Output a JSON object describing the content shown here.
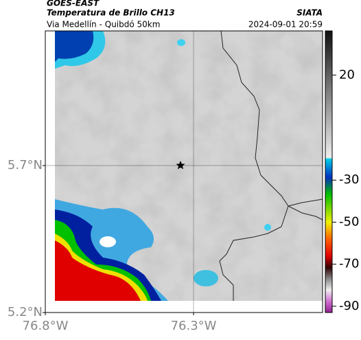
{
  "header": {
    "title": "GOES-EAST",
    "subtitle": "Temperatura de Brillo CH13",
    "location": "Via Medellín - Quibdó 50km",
    "source": "SIATA",
    "datetime": "2024-09-01 20:59"
  },
  "map": {
    "xlim": [
      -76.8,
      -75.865
    ],
    "ylim": [
      5.2,
      6.158
    ],
    "xticks": [
      {
        "value": -76.8,
        "label": "76.8°W"
      },
      {
        "value": -76.3,
        "label": "76.3°W"
      }
    ],
    "yticks": [
      {
        "value": 5.2,
        "label": "5.2°N"
      },
      {
        "value": 5.7,
        "label": "5.7°N"
      }
    ],
    "grid": true
  },
  "colorbar": {
    "lim": [
      -93,
      41
    ],
    "ticks": [
      20,
      -30,
      -50,
      -70,
      -90
    ]
  }
}
